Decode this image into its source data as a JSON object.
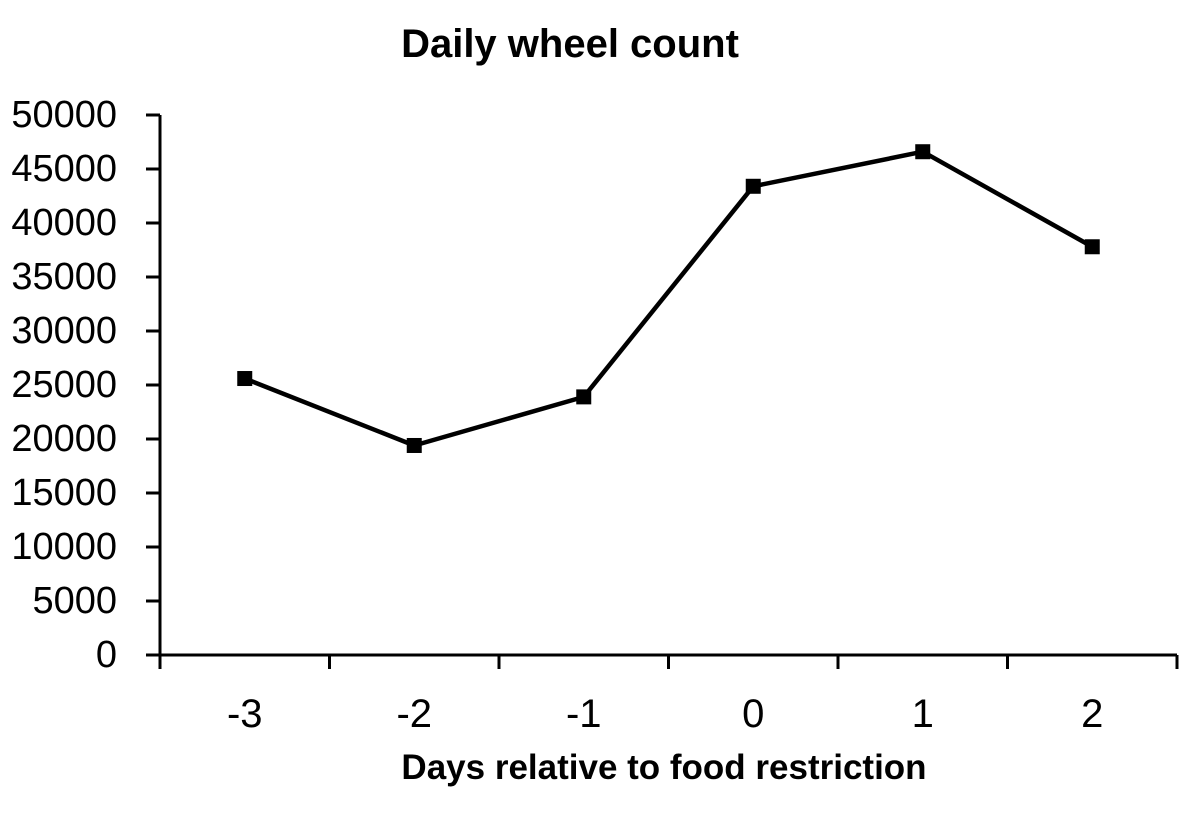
{
  "page": {
    "background": "#ffffff",
    "text_color": "#000000"
  },
  "chart_data": {
    "type": "line",
    "title": "Daily wheel count",
    "xlabel": "Days relative to food restriction",
    "ylabel": "",
    "categories": [
      "-3",
      "-2",
      "-1",
      "0",
      "1",
      "2"
    ],
    "x": [
      -3,
      -2,
      -1,
      0,
      1,
      2
    ],
    "series": [
      {
        "name": "Daily wheel count",
        "values": [
          25600,
          19400,
          23900,
          43400,
          46600,
          37800
        ]
      }
    ],
    "ylim": [
      0,
      50000
    ],
    "y_tick_interval": 5000,
    "y_tick_labels": [
      "0",
      "5000",
      "10000",
      "15000",
      "20000",
      "25000",
      "30000",
      "35000",
      "40000",
      "45000",
      "50000"
    ],
    "grid": false,
    "legend_position": "none",
    "marker": "square",
    "line_color": "#000000",
    "marker_color": "#000000",
    "axis_color": "#000000",
    "background": "#ffffff"
  }
}
